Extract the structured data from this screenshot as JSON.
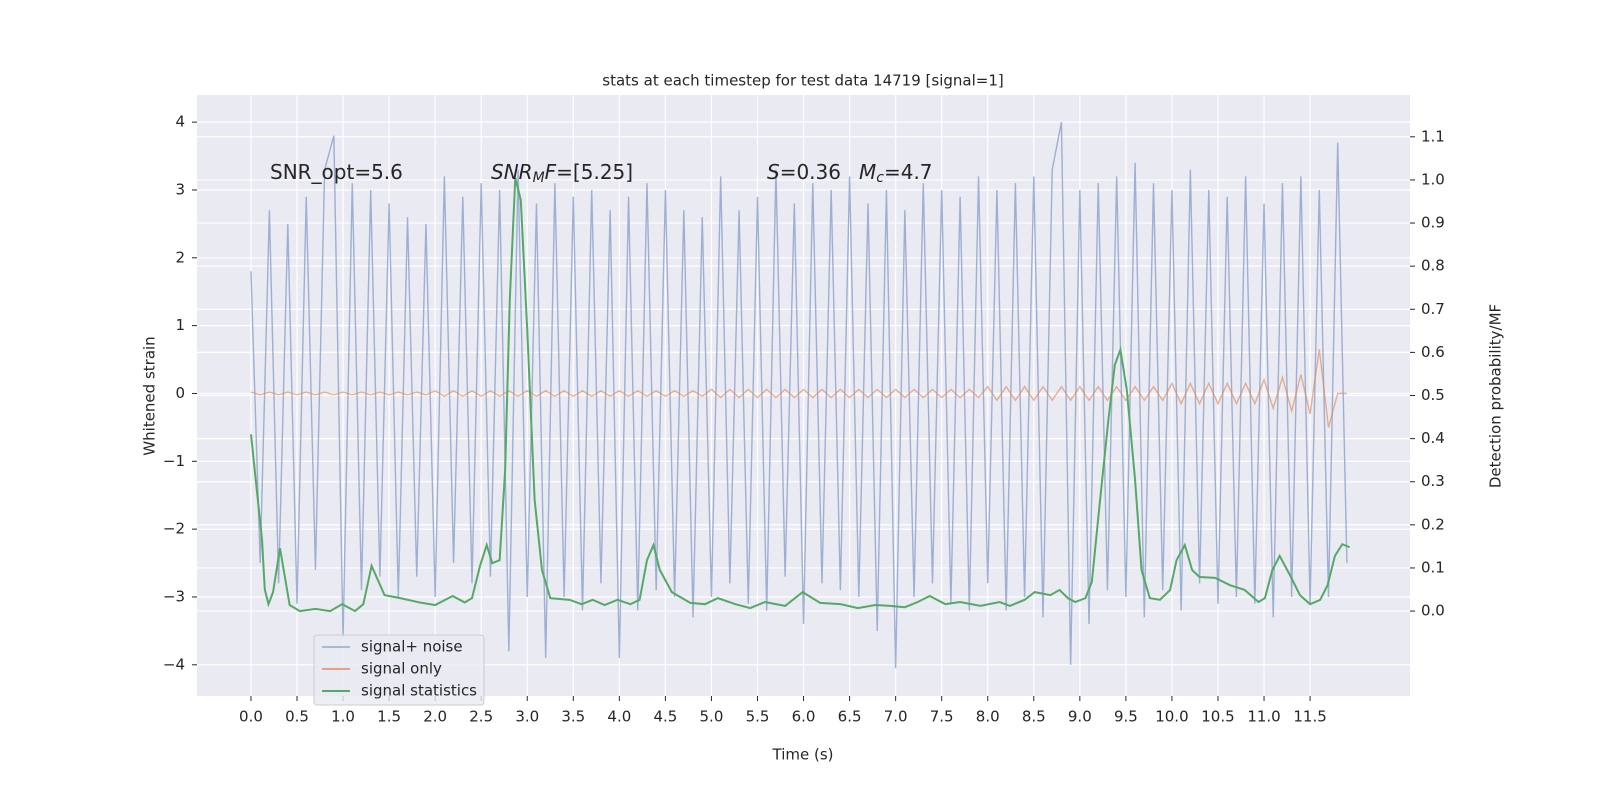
{
  "chart_data": {
    "type": "line",
    "title": "stats at each timestep for test data 14719 [signal=1]",
    "xlabel": "Time (s)",
    "ylabel": "Whitened strain",
    "y2label": "Detection probability/MF",
    "xlim": [
      -0.586,
      12.585
    ],
    "ylim": [
      -4.46,
      4.4
    ],
    "y2lim": [
      -0.197,
      1.197
    ],
    "grid": true,
    "legend": "lower left",
    "xticks": [
      {
        "value": 0,
        "label": "0.0"
      },
      0.5,
      {
        "value": 1,
        "label": "1.0"
      },
      1.5,
      {
        "value": 2,
        "label": "2.0"
      },
      2.5,
      {
        "value": 3,
        "label": "3.0"
      },
      3.5,
      {
        "value": 4,
        "label": "4.0"
      },
      4.5,
      {
        "value": 5,
        "label": "5.0"
      },
      5.5,
      {
        "value": 6,
        "label": "6.0"
      },
      6.5,
      {
        "value": 7,
        "label": "7.0"
      },
      7.5,
      {
        "value": 8,
        "label": "8.0"
      },
      8.5,
      {
        "value": 9,
        "label": "9.0"
      },
      9.5,
      {
        "value": 10,
        "label": "10.0"
      },
      10.5,
      {
        "value": 11,
        "label": "11.0"
      },
      11.5
    ],
    "yticks": [
      {
        "value": -4,
        "label": "−4"
      },
      {
        "value": -3,
        "label": "−3"
      },
      {
        "value": -2,
        "label": "−2"
      },
      {
        "value": -1,
        "label": "−1"
      },
      0,
      1,
      2,
      3,
      4
    ],
    "y2ticks": [
      {
        "value": 0,
        "label": "0.0"
      },
      0.1,
      0.2,
      0.3,
      0.4,
      0.5,
      0.6,
      0.7,
      0.8,
      0.9,
      {
        "value": 1,
        "label": "1.0"
      },
      1.1
    ],
    "annotations": [
      {
        "parts": [
          {
            "text": "SNR_opt=5.6"
          }
        ]
      },
      {
        "parts": [
          {
            "text": "SNR",
            "style": "italic"
          },
          {
            "text": "M",
            "style": "italic-sub"
          },
          {
            "text": "F",
            "style": "italic"
          },
          {
            "text": "=[5.25]"
          }
        ]
      },
      {
        "parts": [
          {
            "text": "S",
            "style": "italic"
          },
          {
            "text": "=0.36"
          }
        ]
      },
      {
        "parts": [
          {
            "text": "M",
            "style": "italic"
          },
          {
            "text": "c",
            "style": "italic-sub"
          },
          {
            "text": "=4.7"
          }
        ]
      }
    ],
    "x": [
      0,
      0.1,
      0.2,
      0.3,
      0.4,
      0.5,
      0.6,
      0.7,
      0.8,
      0.9,
      1,
      1.1,
      1.2,
      1.3,
      1.4,
      1.5,
      1.6,
      1.7,
      1.8,
      1.9,
      2,
      2.1,
      2.2,
      2.3,
      2.4,
      2.5,
      2.6,
      2.7,
      2.8,
      2.9,
      3,
      3.1,
      3.2,
      3.3,
      3.4,
      3.5,
      3.6,
      3.7,
      3.8,
      3.9,
      4,
      4.1,
      4.2,
      4.3,
      4.4,
      4.5,
      4.6,
      4.7,
      4.8,
      4.9,
      5,
      5.1,
      5.2,
      5.3,
      5.4,
      5.5,
      5.6,
      5.7,
      5.8,
      5.9,
      6,
      6.1,
      6.2,
      6.3,
      6.4,
      6.5,
      6.6,
      6.7,
      6.8,
      6.9,
      7,
      7.1,
      7.2,
      7.3,
      7.4,
      7.5,
      7.6,
      7.7,
      7.8,
      7.9,
      8,
      8.1,
      8.2,
      8.3,
      8.4,
      8.5,
      8.6,
      8.7,
      8.8,
      8.9,
      9,
      9.1,
      9.2,
      9.3,
      9.4,
      9.5,
      9.6,
      9.7,
      9.8,
      9.9,
      10,
      10.1,
      10.2,
      10.3,
      10.4,
      10.5,
      10.6,
      10.7,
      10.8,
      10.9,
      11,
      11.1,
      11.2,
      11.3,
      11.4,
      11.5,
      11.6,
      11.7,
      11.8,
      11.9
    ],
    "series": [
      {
        "name": "signal+ noise",
        "color": "#8fa4cc",
        "values": [
          1.8,
          -2.5,
          2.7,
          -2.8,
          2.5,
          -3.1,
          2.9,
          -2.6,
          3.3,
          3.8,
          -3.6,
          3.1,
          -2.9,
          3.0,
          -2.7,
          2.8,
          -3.0,
          2.6,
          -2.7,
          2.5,
          -3.0,
          3.2,
          -2.5,
          2.9,
          -2.8,
          3.1,
          -2.7,
          3.0,
          -3.8,
          3.3,
          -3.0,
          2.8,
          -3.9,
          3.1,
          -3.0,
          2.9,
          -3.2,
          3.0,
          -2.8,
          2.7,
          -3.9,
          2.9,
          -3.2,
          3.1,
          -2.9,
          3.0,
          -3.0,
          2.7,
          -3.3,
          2.6,
          -3.0,
          3.2,
          -2.8,
          2.7,
          -3.1,
          2.9,
          -3.2,
          3.3,
          -2.7,
          2.8,
          -3.4,
          3.1,
          -2.8,
          3.0,
          -2.9,
          3.2,
          -3.0,
          2.8,
          -3.5,
          3.0,
          -4.05,
          2.7,
          -3.0,
          3.1,
          -2.8,
          3.0,
          -3.1,
          2.9,
          -3.2,
          3.2,
          -2.8,
          3.0,
          -3.2,
          3.1,
          -3.0,
          3.2,
          -3.3,
          3.3,
          4.0,
          -4.0,
          3.0,
          -3.4,
          3.1,
          -2.9,
          3.2,
          -3.0,
          3.4,
          -3.3,
          3.1,
          -2.9,
          3.0,
          -3.2,
          3.3,
          -2.8,
          3.0,
          -3.1,
          2.9,
          -3.0,
          3.2,
          -3.1,
          2.8,
          -3.3,
          3.1,
          -3.0,
          3.2,
          -3.1,
          3.0,
          -3.0,
          3.7,
          -2.5
        ]
      },
      {
        "name": "signal only",
        "color": "#dd8452",
        "values": [
          0.02,
          -0.02,
          0.02,
          -0.02,
          0.02,
          -0.02,
          0.02,
          -0.02,
          0.02,
          -0.02,
          0.02,
          -0.02,
          0.02,
          -0.02,
          0.02,
          -0.02,
          0.02,
          -0.02,
          0.02,
          -0.02,
          0.04,
          -0.04,
          0.04,
          -0.04,
          0.04,
          -0.04,
          0.04,
          -0.04,
          0.04,
          -0.04,
          0.04,
          -0.04,
          0.04,
          -0.04,
          0.04,
          -0.04,
          0.04,
          -0.04,
          0.04,
          -0.04,
          0.04,
          -0.04,
          0.04,
          -0.04,
          0.04,
          -0.04,
          0.04,
          -0.04,
          0.04,
          -0.04,
          0.06,
          -0.06,
          0.06,
          -0.06,
          0.06,
          -0.06,
          0.06,
          -0.06,
          0.06,
          -0.06,
          0.06,
          -0.06,
          0.06,
          -0.06,
          0.06,
          -0.06,
          0.06,
          -0.06,
          0.06,
          -0.06,
          0.06,
          -0.06,
          0.06,
          -0.06,
          0.06,
          -0.06,
          0.06,
          -0.06,
          0.06,
          -0.06,
          0.1,
          -0.1,
          0.1,
          -0.1,
          0.1,
          -0.1,
          0.1,
          -0.1,
          0.1,
          -0.1,
          0.1,
          -0.1,
          0.1,
          -0.1,
          0.1,
          -0.1,
          0.1,
          -0.1,
          0.1,
          -0.1,
          0.15,
          -0.15,
          0.15,
          -0.15,
          0.15,
          -0.15,
          0.15,
          -0.15,
          0.15,
          -0.15,
          0.2,
          -0.22,
          0.24,
          -0.26,
          0.28,
          -0.3,
          0.65,
          -0.5,
          0,
          0
        ]
      },
      {
        "name": "signal statistics",
        "color": "#55a868",
        "axis": "y2",
        "x": [
          0,
          0.12,
          0.15,
          0.19,
          0.24,
          0.315,
          0.42,
          0.53,
          0.7,
          0.86,
          0.99,
          1.13,
          1.22,
          1.31,
          1.45,
          1.62,
          1.83,
          2.0,
          2.19,
          2.32,
          2.4,
          2.49,
          2.56,
          2.62,
          2.7,
          2.76,
          2.81,
          2.87,
          2.93,
          3.0,
          3.08,
          3.16,
          3.25,
          3.46,
          3.59,
          3.71,
          3.84,
          3.98,
          4.12,
          4.22,
          4.3,
          4.37,
          4.44,
          4.57,
          4.77,
          4.93,
          5.07,
          5.26,
          5.42,
          5.58,
          5.8,
          5.99,
          6.18,
          6.4,
          6.59,
          6.78,
          6.94,
          7.1,
          7.24,
          7.37,
          7.54,
          7.7,
          7.92,
          8.13,
          8.24,
          8.4,
          8.51,
          8.68,
          8.78,
          8.87,
          8.95,
          9.06,
          9.13,
          9.22,
          9.31,
          9.38,
          9.44,
          9.51,
          9.6,
          9.67,
          9.76,
          9.87,
          9.98,
          10.05,
          10.14,
          10.22,
          10.3,
          10.47,
          10.63,
          10.79,
          10.94,
          11.01,
          11.09,
          11.17,
          11.28,
          11.39,
          11.5,
          11.61,
          11.69,
          11.77,
          11.85,
          11.93
        ],
        "values": [
          0.41,
          0.165,
          0.05,
          0.016,
          0.044,
          0.146,
          0.014,
          0.0,
          0.005,
          0.0,
          0.016,
          0.0,
          0.016,
          0.105,
          0.037,
          0.03,
          0.02,
          0.014,
          0.035,
          0.02,
          0.03,
          0.107,
          0.153,
          0.111,
          0.118,
          0.327,
          0.72,
          1.005,
          0.953,
          0.652,
          0.258,
          0.095,
          0.03,
          0.026,
          0.016,
          0.026,
          0.014,
          0.026,
          0.016,
          0.026,
          0.118,
          0.153,
          0.095,
          0.044,
          0.019,
          0.016,
          0.03,
          0.016,
          0.007,
          0.021,
          0.012,
          0.044,
          0.019,
          0.016,
          0.007,
          0.014,
          0.012,
          0.009,
          0.021,
          0.035,
          0.016,
          0.021,
          0.012,
          0.021,
          0.012,
          0.026,
          0.044,
          0.037,
          0.049,
          0.03,
          0.021,
          0.03,
          0.067,
          0.258,
          0.443,
          0.571,
          0.606,
          0.513,
          0.304,
          0.095,
          0.03,
          0.026,
          0.049,
          0.118,
          0.153,
          0.095,
          0.079,
          0.077,
          0.06,
          0.049,
          0.021,
          0.03,
          0.095,
          0.128,
          0.084,
          0.037,
          0.016,
          0.026,
          0.06,
          0.128,
          0.155,
          0.148
        ]
      }
    ]
  }
}
